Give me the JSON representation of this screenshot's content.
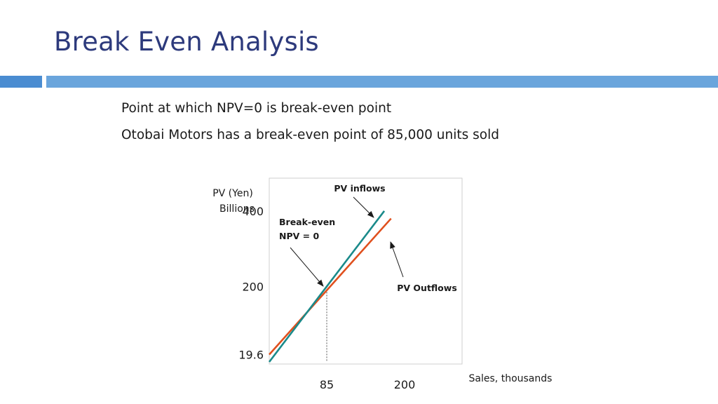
{
  "slide": {
    "title": "Break Even Analysis",
    "bullets": [
      "Point at which NPV=0 is break-even point",
      "Otobai Motors has a break-even point of 85,000 units sold"
    ]
  },
  "colors": {
    "title": "#2d3a7c",
    "rule_left": "#4a8cd1",
    "rule_right": "#6aa5dc",
    "pv_inflows": "#1a8a8a",
    "pv_outflows": "#e0501e"
  },
  "chart_data": {
    "type": "line",
    "ylabel_line1": "PV (Yen)",
    "ylabel_line2": "Billions",
    "xlabel": "Sales, thousands",
    "x_ticks": [
      85,
      200
    ],
    "x_tick_labels": [
      "85",
      "200"
    ],
    "y_ticks": [
      19.6,
      200,
      400
    ],
    "y_tick_labels": [
      "19.6",
      "200",
      "400"
    ],
    "series": [
      {
        "name": "PV inflows",
        "x": [
          0,
          170
        ],
        "y": [
          0,
          400
        ]
      },
      {
        "name": "PV Outflows",
        "x": [
          0,
          180
        ],
        "y": [
          19.6,
          380
        ]
      }
    ],
    "breakeven": {
      "x": 85,
      "y": 200
    },
    "annotations": {
      "pv_inflows": "PV inflows",
      "pv_outflows": "PV Outflows",
      "breakeven_line1": "Break-even",
      "breakeven_line2": "NPV = 0"
    }
  }
}
